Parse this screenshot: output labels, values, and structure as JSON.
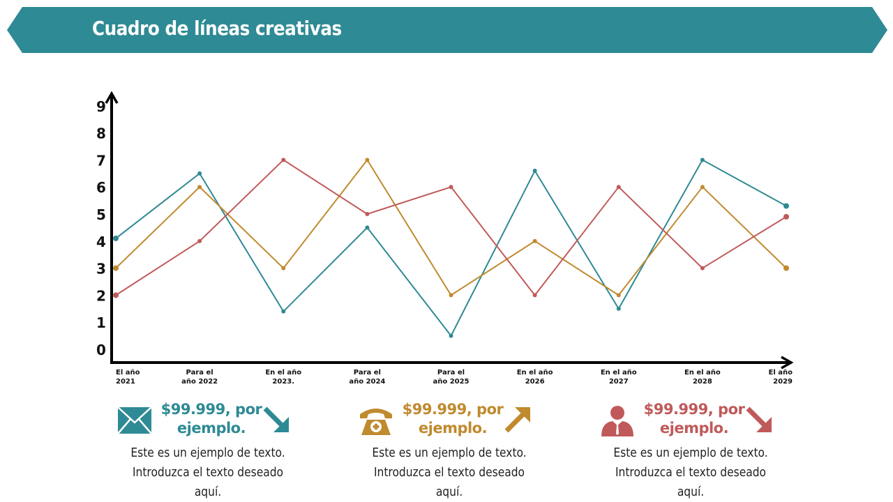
{
  "header": {
    "title": "Cuadro de líneas creativas"
  },
  "chart_data": {
    "type": "line",
    "title": "",
    "xlabel": "",
    "ylabel": "",
    "ylim": [
      0,
      9
    ],
    "yticks": [
      "0",
      "1",
      "2",
      "3",
      "4",
      "5",
      "6",
      "7",
      "8",
      "9"
    ],
    "categories": [
      [
        "El año",
        "2021"
      ],
      [
        "Para el",
        "año 2022"
      ],
      [
        "En el año",
        "2023."
      ],
      [
        "Para el",
        "año 2024"
      ],
      [
        "Para el",
        "año 2025"
      ],
      [
        "En el año",
        "2026"
      ],
      [
        "En el año",
        "2027"
      ],
      [
        "En el año",
        "2028"
      ],
      [
        "El año",
        "2029"
      ]
    ],
    "grid": false,
    "series": [
      {
        "color": "#2e8a94",
        "values": [
          4.1,
          6.5,
          1.4,
          4.5,
          0.5,
          6.6,
          1.5,
          7.0,
          5.3
        ]
      },
      {
        "color": "#c08a2e",
        "values": [
          3.0,
          6.0,
          3.0,
          7.0,
          2.0,
          4.0,
          2.0,
          6.0,
          3.0
        ]
      },
      {
        "color": "#c05a5a",
        "values": [
          2.0,
          4.0,
          7.0,
          5.0,
          6.0,
          2.0,
          6.0,
          3.0,
          4.9
        ]
      }
    ]
  },
  "callouts": [
    {
      "icon": "envelope-icon",
      "value": "$99.999, por ejemplo.",
      "trend": "arrow-down-right-icon",
      "color": "#2e8a94",
      "line1": "Este es un ejemplo de texto.",
      "line2": "Introduzca el texto  deseado aquí."
    },
    {
      "icon": "telephone-icon",
      "value": "$99.999, por ejemplo.",
      "trend": "arrow-up-right-icon",
      "color": "#c08a2e",
      "line1": "Este es un ejemplo de texto.",
      "line2": "Introduzca el texto  deseado aquí."
    },
    {
      "icon": "person-icon",
      "value": "$99.999, por ejemplo.",
      "trend": "arrow-down-right-icon",
      "color": "#c05a5a",
      "line1": "Este es un ejemplo de texto.",
      "line2": "Introduzca el texto  deseado aquí."
    }
  ]
}
